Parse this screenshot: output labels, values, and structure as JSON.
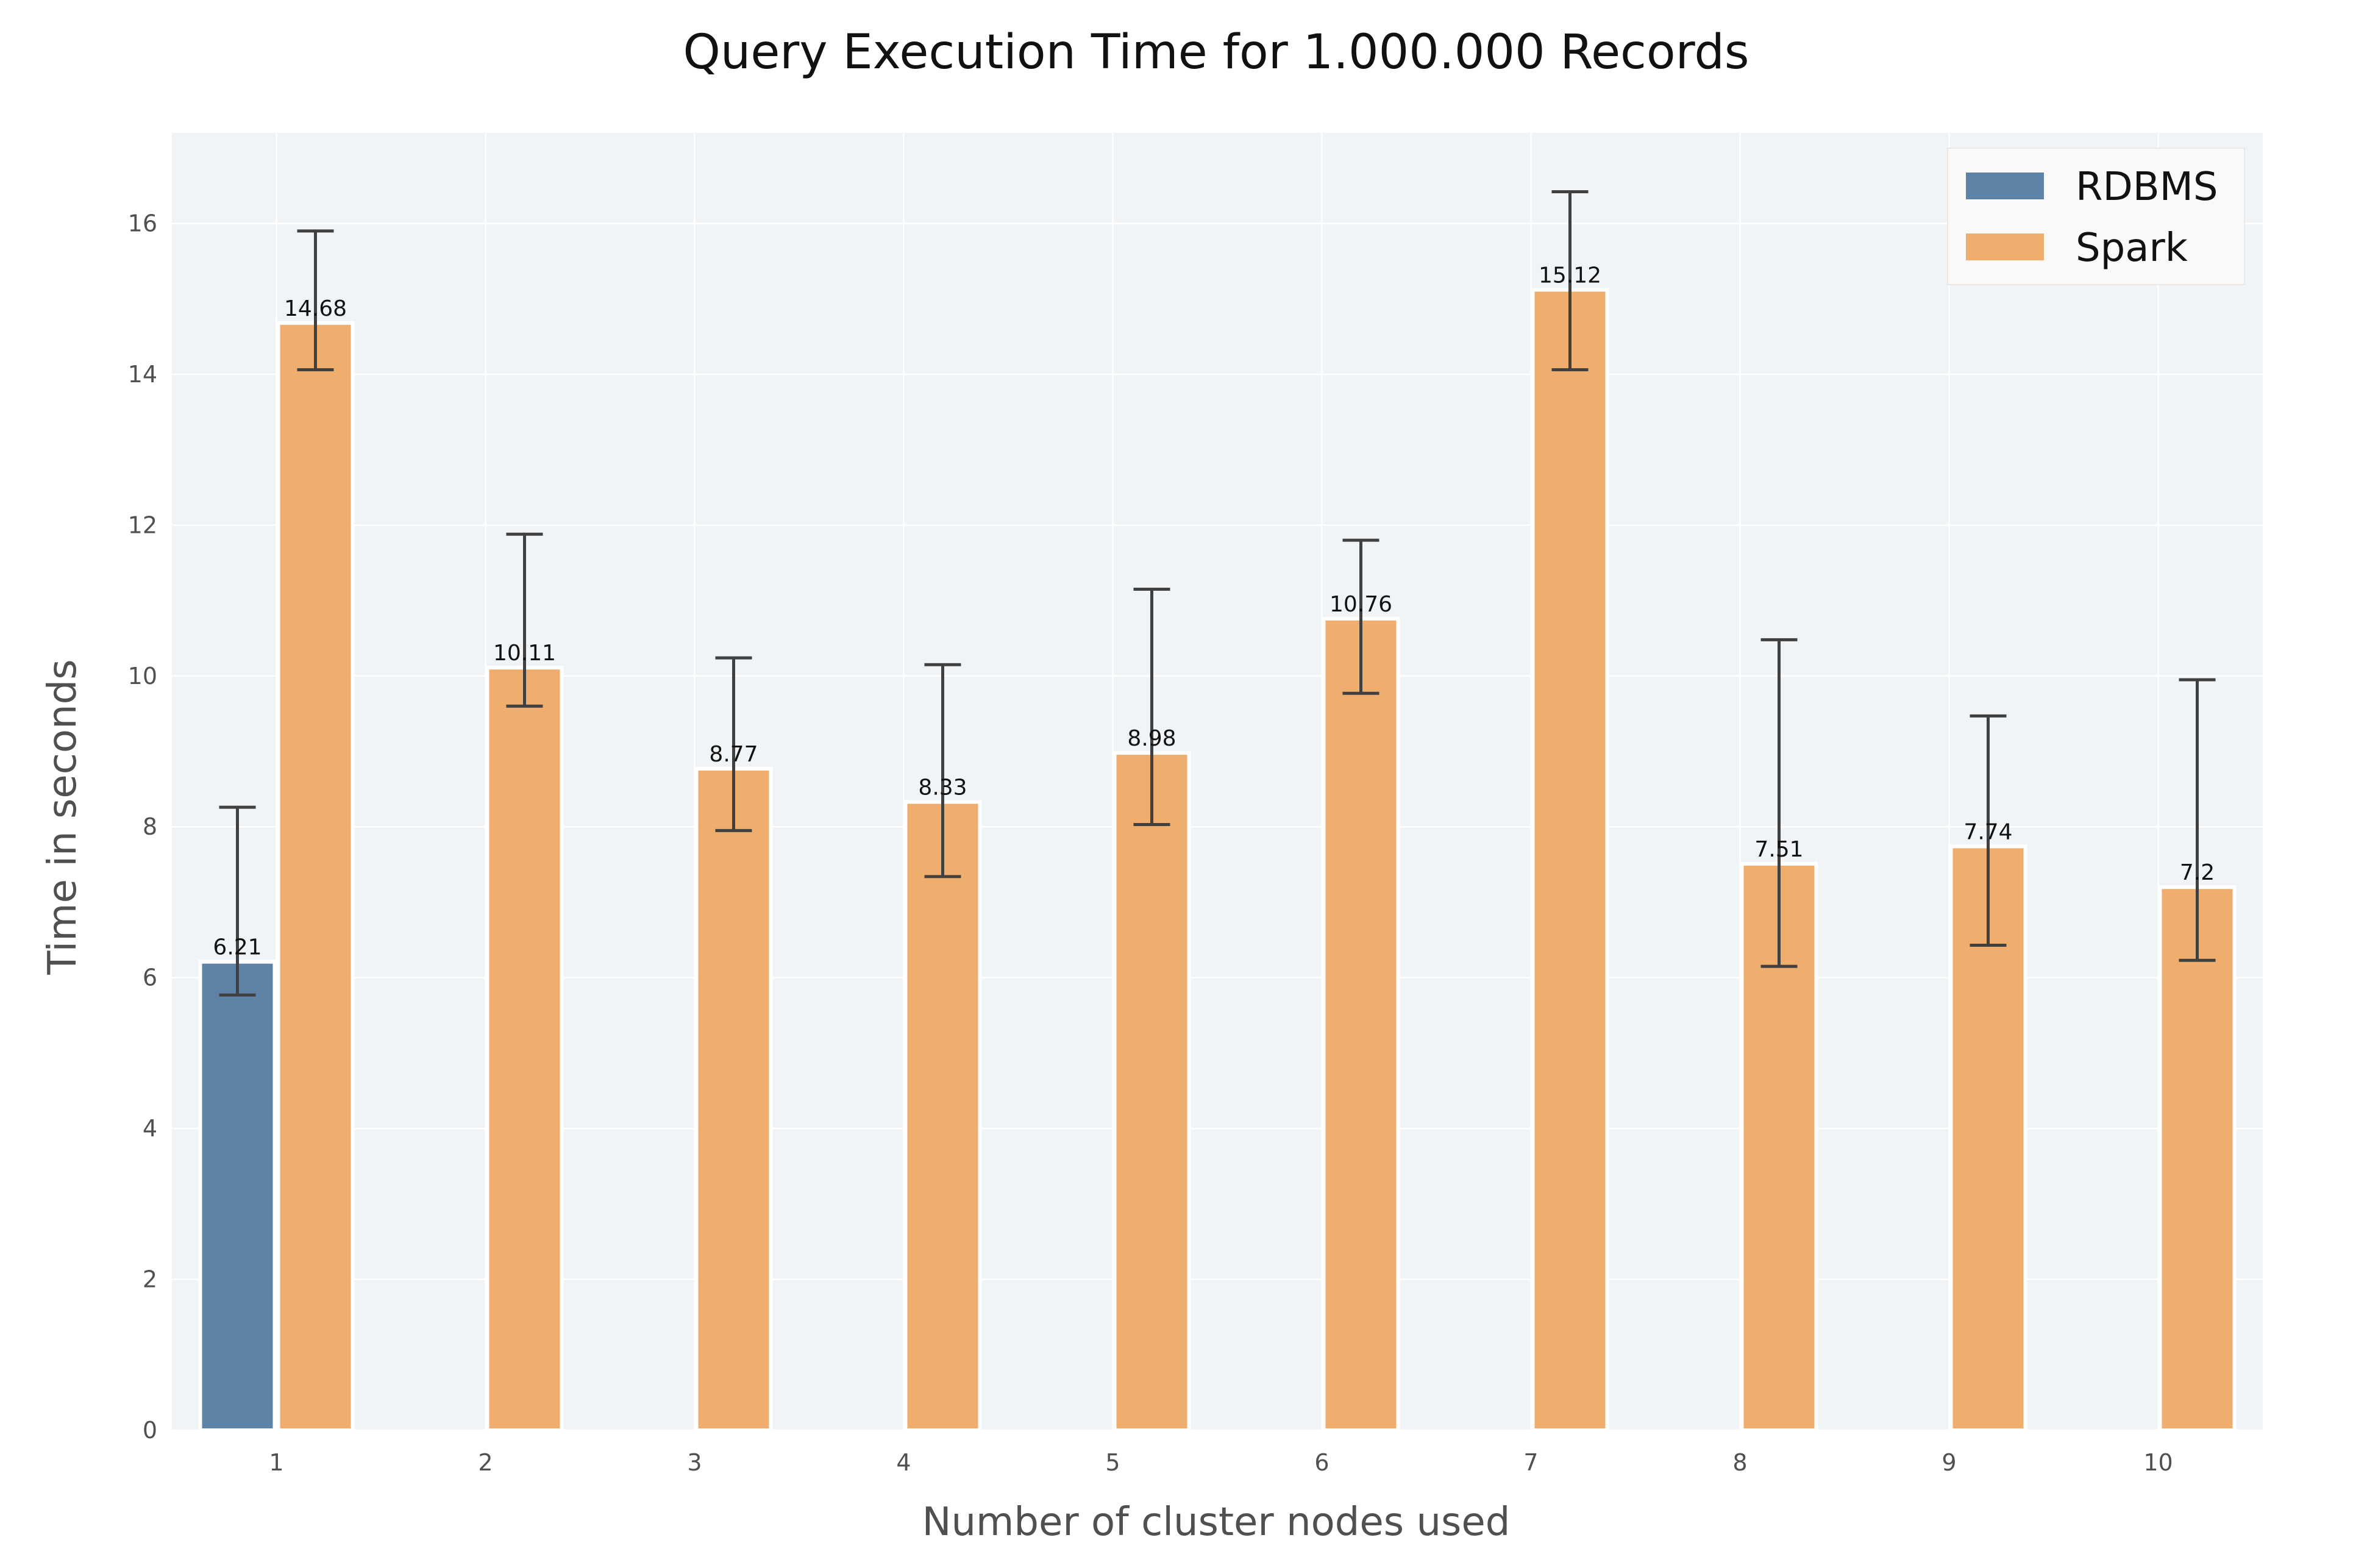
{
  "chart_data": {
    "type": "bar",
    "title": "Query Execution Time for 1.000.000 Records",
    "xlabel": "Number of cluster nodes used",
    "ylabel": "Time in seconds",
    "categories": [
      "1",
      "2",
      "3",
      "4",
      "5",
      "6",
      "7",
      "8",
      "9",
      "10"
    ],
    "ylim": [
      0,
      17.2
    ],
    "yticks": [
      0,
      2,
      4,
      6,
      8,
      10,
      12,
      14,
      16
    ],
    "grid": true,
    "legend_position": "top-right",
    "series": [
      {
        "name": "RDBMS",
        "color": "#5f83a6",
        "values": [
          6.21,
          null,
          null,
          null,
          null,
          null,
          null,
          null,
          null,
          null
        ],
        "labels": [
          "6.21",
          "",
          "",
          "",
          "",
          "",
          "",
          "",
          "",
          ""
        ],
        "error_low": [
          5.77,
          null,
          null,
          null,
          null,
          null,
          null,
          null,
          null,
          null
        ],
        "error_high": [
          8.26,
          null,
          null,
          null,
          null,
          null,
          null,
          null,
          null,
          null
        ]
      },
      {
        "name": "Spark",
        "color": "#efad6e",
        "values": [
          14.68,
          10.11,
          8.77,
          8.33,
          8.98,
          10.76,
          15.12,
          7.51,
          7.74,
          7.2
        ],
        "labels": [
          "14.68",
          "10.11",
          "8.77",
          "8.33",
          "8.98",
          "10.76",
          "15.12",
          "7.51",
          "7.74",
          "7.2"
        ],
        "error_low": [
          14.06,
          9.6,
          7.95,
          7.34,
          8.03,
          9.77,
          14.06,
          6.15,
          6.43,
          6.23
        ],
        "error_high": [
          15.9,
          11.88,
          10.24,
          10.15,
          11.15,
          11.8,
          16.42,
          10.48,
          9.47,
          9.95
        ]
      }
    ],
    "colors": {
      "plot_background": "#f0f4f7",
      "grid": "#ffffff",
      "error_bar": "#404040",
      "bar_edge": "#ffffff"
    }
  }
}
